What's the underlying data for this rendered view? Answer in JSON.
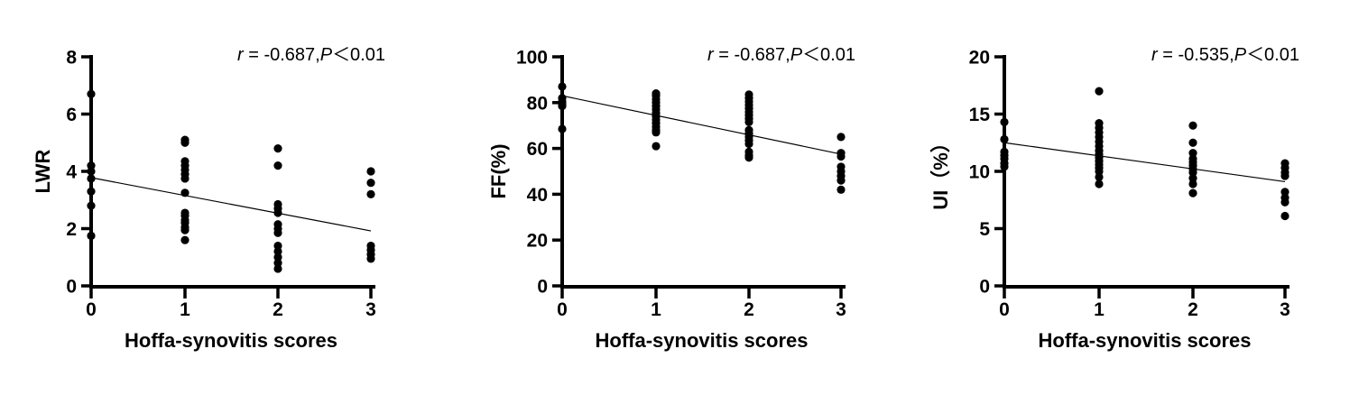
{
  "figure": {
    "background": "#ffffff",
    "ink_color": "#000000",
    "xlabel": "Hoffa-synovitis scores"
  },
  "chart_data": [
    {
      "type": "scatter",
      "panel": "left",
      "xlabel": "Hoffa-synovitis scores",
      "ylabel": "LWR",
      "xticks": [
        0,
        1,
        2,
        3
      ],
      "yticks": [
        0,
        2,
        4,
        6,
        8
      ],
      "xlim": [
        0,
        3
      ],
      "ylim": [
        0,
        8
      ],
      "grid": false,
      "legend": "none",
      "annotation": {
        "text": "r = -0.687,P＜0.01",
        "r_label": "r",
        "middle": " = -0.687,",
        "p_label": "P",
        "tail": "＜0.01"
      },
      "groups": [
        {
          "score": 0,
          "values": [
            6.7,
            4.2,
            4.0,
            3.75,
            3.3,
            2.8,
            1.75
          ]
        },
        {
          "score": 1,
          "values": [
            5.1,
            5.0,
            4.35,
            4.2,
            4.05,
            3.9,
            3.75,
            3.25,
            2.55,
            2.45,
            2.3,
            2.2,
            2.05,
            1.95,
            1.6
          ]
        },
        {
          "score": 2,
          "values": [
            4.8,
            4.2,
            2.85,
            2.7,
            2.55,
            2.15,
            2.0,
            1.85,
            1.4,
            1.2,
            1.0,
            0.8,
            0.6
          ]
        },
        {
          "score": 3,
          "values": [
            4.0,
            3.6,
            3.2,
            1.4,
            1.25,
            1.1,
            0.95
          ]
        }
      ],
      "trend": {
        "x": [
          0,
          3
        ],
        "y": [
          3.78,
          1.92
        ]
      }
    },
    {
      "type": "scatter",
      "panel": "middle",
      "xlabel": "Hoffa-synovitis scores",
      "ylabel": "FF(%)",
      "xticks": [
        0,
        1,
        2,
        3
      ],
      "yticks": [
        0,
        20,
        40,
        60,
        80,
        100
      ],
      "xlim": [
        0,
        3
      ],
      "ylim": [
        0,
        100
      ],
      "grid": false,
      "legend": "none",
      "annotation": {
        "text": "r = -0.687,P＜0.01",
        "r_label": "r",
        "middle": " = -0.687,",
        "p_label": "P",
        "tail": "＜0.01"
      },
      "groups": [
        {
          "score": 0,
          "values": [
            87,
            82,
            80.5,
            79.5,
            78.5,
            68.5
          ]
        },
        {
          "score": 1,
          "values": [
            84,
            83,
            81.5,
            80,
            78.5,
            77,
            75.5,
            74,
            72.5,
            71,
            69.5,
            68,
            67,
            61
          ]
        },
        {
          "score": 2,
          "values": [
            83.5,
            82,
            80.5,
            79,
            77.5,
            76,
            74.5,
            73,
            71.5,
            68,
            66.5,
            65,
            63.5,
            62,
            58.5,
            57,
            56
          ]
        },
        {
          "score": 3,
          "values": [
            65,
            58,
            56.5,
            52,
            50,
            48,
            46,
            42
          ]
        }
      ],
      "trend": {
        "x": [
          0,
          3
        ],
        "y": [
          83,
          57.5
        ]
      }
    },
    {
      "type": "scatter",
      "panel": "right",
      "xlabel": "Hoffa-synovitis scores",
      "ylabel": "UI（%）",
      "xticks": [
        0,
        1,
        2,
        3
      ],
      "yticks": [
        0,
        5,
        10,
        15,
        20
      ],
      "xlim": [
        0,
        3
      ],
      "ylim": [
        0,
        20
      ],
      "grid": false,
      "legend": "none",
      "annotation": {
        "text": "r = -0.535,P＜0.01",
        "r_label": "r",
        "middle": " = -0.535,",
        "p_label": "P",
        "tail": "＜0.01"
      },
      "groups": [
        {
          "score": 0,
          "values": [
            14.3,
            12.8,
            11.7,
            11.4,
            11.1,
            10.7,
            10.4
          ]
        },
        {
          "score": 1,
          "values": [
            17,
            14.2,
            13.8,
            13.4,
            13.0,
            12.6,
            12.2,
            11.8,
            11.5,
            11.2,
            10.9,
            10.6,
            10.3,
            10.0,
            9.5,
            8.9
          ]
        },
        {
          "score": 2,
          "values": [
            14,
            12.5,
            11.6,
            11.1,
            10.8,
            10.5,
            10.2,
            9.9,
            9.4,
            8.9,
            8.1
          ]
        },
        {
          "score": 3,
          "values": [
            10.7,
            10.3,
            9.9,
            9.6,
            8.2,
            7.7,
            7.3,
            6.1
          ]
        }
      ],
      "trend": {
        "x": [
          0,
          3
        ],
        "y": [
          12.5,
          9.1
        ]
      }
    }
  ]
}
